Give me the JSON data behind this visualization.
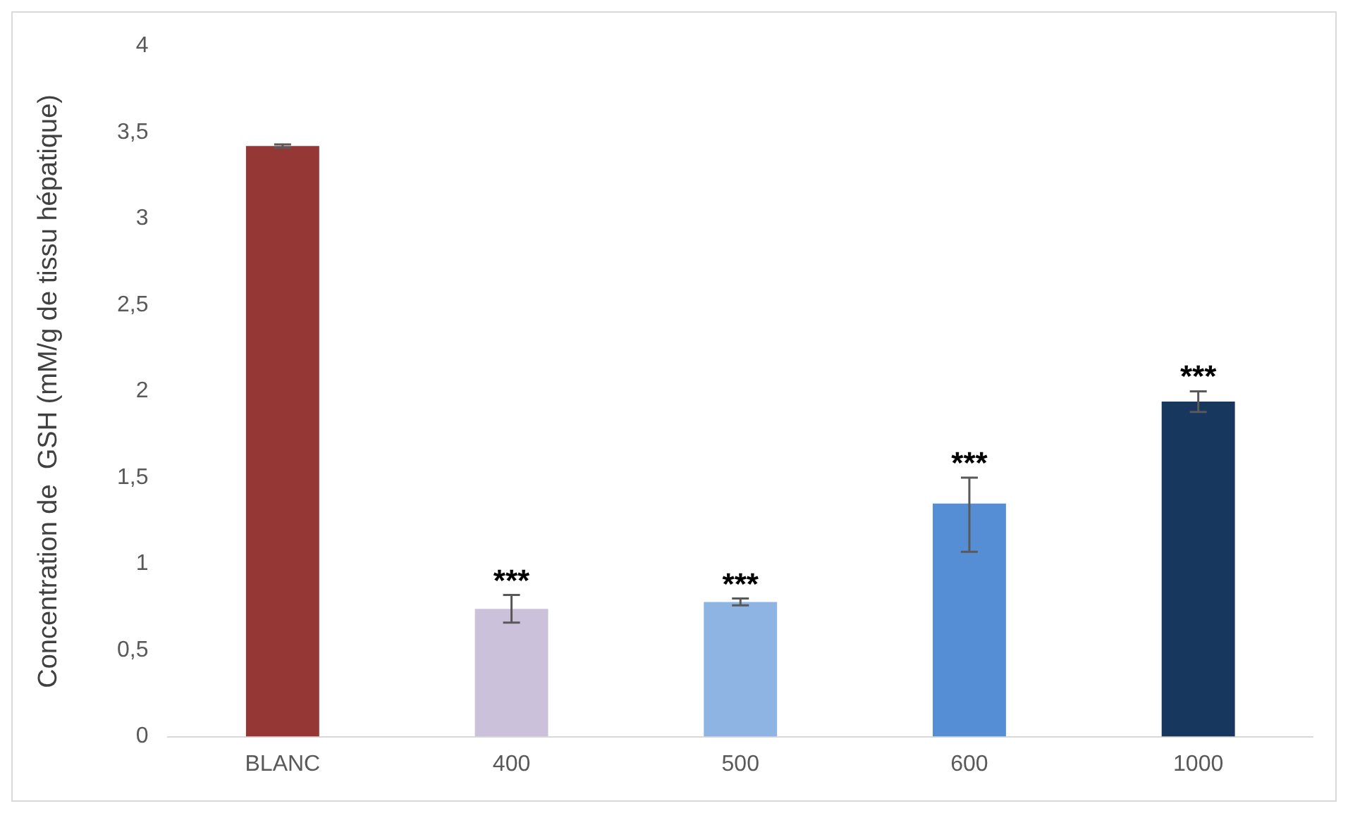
{
  "chart_data": {
    "type": "bar",
    "ylabel": "Concentration de  GSH (mM/g de tissu hépatique)",
    "categories": [
      "BLANC",
      "400",
      "500",
      "600",
      "1000"
    ],
    "values": [
      3.42,
      0.74,
      0.78,
      1.35,
      1.94
    ],
    "colors": [
      "#953735",
      "#ccc1da",
      "#8eb4e3",
      "#558ed5",
      "#17375e"
    ],
    "errors": [
      0.01,
      0.08,
      0.02,
      [
        1.07,
        1.5
      ],
      0.06
    ],
    "ylim": [
      0,
      4
    ],
    "yticks": [
      0,
      {
        "value": 0.5,
        "label": "0,5"
      },
      1,
      {
        "value": 1.5,
        "label": "1,5"
      },
      2,
      {
        "value": 2.5,
        "label": "2,5"
      },
      3,
      {
        "value": 3.5,
        "label": "3,5"
      },
      4
    ],
    "grid": false,
    "legend": false,
    "annotations": [
      {
        "text": "***",
        "x": "400",
        "y": 0.82
      },
      {
        "text": "***",
        "x": "500",
        "y": 0.8
      },
      {
        "text": "***",
        "x": "600",
        "y": 1.5
      },
      {
        "text": "***",
        "x": "1000",
        "y": 2.0
      }
    ]
  }
}
